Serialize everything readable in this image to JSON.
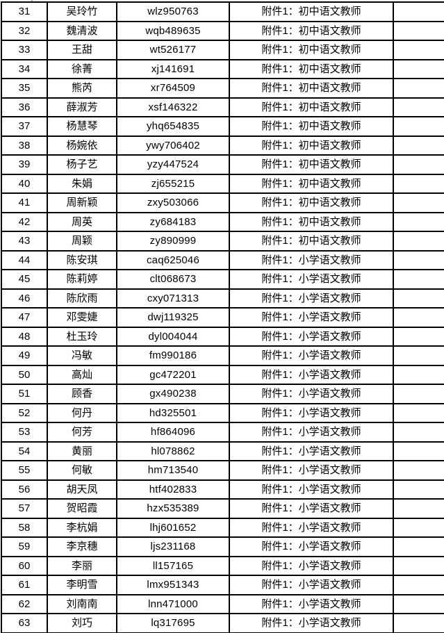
{
  "colors": {
    "grid": "#000000",
    "text": "#000000",
    "background": "#ffffff"
  },
  "table": {
    "rows": [
      {
        "no": "31",
        "name": "吴玲竹",
        "account": "wlz950763",
        "attachment": "附件1：初中语文教师",
        "note": ""
      },
      {
        "no": "32",
        "name": "魏清波",
        "account": "wqb489635",
        "attachment": "附件1：初中语文教师",
        "note": ""
      },
      {
        "no": "33",
        "name": "王甜",
        "account": "wt526177",
        "attachment": "附件1：初中语文教师",
        "note": ""
      },
      {
        "no": "34",
        "name": "徐菁",
        "account": "xj141691",
        "attachment": "附件1：初中语文教师",
        "note": ""
      },
      {
        "no": "35",
        "name": "熊芮",
        "account": "xr764509",
        "attachment": "附件1：初中语文教师",
        "note": ""
      },
      {
        "no": "36",
        "name": "薛淑芳",
        "account": "xsf146322",
        "attachment": "附件1：初中语文教师",
        "note": ""
      },
      {
        "no": "37",
        "name": "杨慧琴",
        "account": "yhq654835",
        "attachment": "附件1：初中语文教师",
        "note": ""
      },
      {
        "no": "38",
        "name": "杨婉依",
        "account": "ywy706402",
        "attachment": "附件1：初中语文教师",
        "note": ""
      },
      {
        "no": "39",
        "name": "杨子艺",
        "account": "yzy447524",
        "attachment": "附件1：初中语文教师",
        "note": ""
      },
      {
        "no": "40",
        "name": "朱娟",
        "account": "zj655215",
        "attachment": "附件1：初中语文教师",
        "note": ""
      },
      {
        "no": "41",
        "name": "周新颖",
        "account": "zxy503066",
        "attachment": "附件1：初中语文教师",
        "note": ""
      },
      {
        "no": "42",
        "name": "周英",
        "account": "zy684183",
        "attachment": "附件1：初中语文教师",
        "note": ""
      },
      {
        "no": "43",
        "name": "周颖",
        "account": "zy890999",
        "attachment": "附件1：初中语文教师",
        "note": ""
      },
      {
        "no": "44",
        "name": "陈安琪",
        "account": "caq625046",
        "attachment": "附件1：小学语文教师",
        "note": ""
      },
      {
        "no": "45",
        "name": "陈莉婷",
        "account": "clt068673",
        "attachment": "附件1：小学语文教师",
        "note": ""
      },
      {
        "no": "46",
        "name": "陈欣雨",
        "account": "cxy071313",
        "attachment": "附件1：小学语文教师",
        "note": ""
      },
      {
        "no": "47",
        "name": "邓雯婕",
        "account": "dwj119325",
        "attachment": "附件1：小学语文教师",
        "note": ""
      },
      {
        "no": "48",
        "name": "杜玉玲",
        "account": "dyl004044",
        "attachment": "附件1：小学语文教师",
        "note": ""
      },
      {
        "no": "49",
        "name": "冯敏",
        "account": "fm990186",
        "attachment": "附件1：小学语文教师",
        "note": ""
      },
      {
        "no": "50",
        "name": "高灿",
        "account": "gc472201",
        "attachment": "附件1：小学语文教师",
        "note": ""
      },
      {
        "no": "51",
        "name": "顾香",
        "account": "gx490238",
        "attachment": "附件1：小学语文教师",
        "note": ""
      },
      {
        "no": "52",
        "name": "何丹",
        "account": "hd325501",
        "attachment": "附件1：小学语文教师",
        "note": ""
      },
      {
        "no": "53",
        "name": "何芳",
        "account": "hf864096",
        "attachment": "附件1：小学语文教师",
        "note": ""
      },
      {
        "no": "54",
        "name": "黄丽",
        "account": "hl078862",
        "attachment": "附件1：小学语文教师",
        "note": ""
      },
      {
        "no": "55",
        "name": "何敏",
        "account": "hm713540",
        "attachment": "附件1：小学语文教师",
        "note": ""
      },
      {
        "no": "56",
        "name": "胡天凤",
        "account": "htf402833",
        "attachment": "附件1：小学语文教师",
        "note": ""
      },
      {
        "no": "57",
        "name": "贺昭霞",
        "account": "hzx535389",
        "attachment": "附件1：小学语文教师",
        "note": ""
      },
      {
        "no": "58",
        "name": "李杭娟",
        "account": "lhj601652",
        "attachment": "附件1：小学语文教师",
        "note": ""
      },
      {
        "no": "59",
        "name": "李京穗",
        "account": "ljs231168",
        "attachment": "附件1：小学语文教师",
        "note": ""
      },
      {
        "no": "60",
        "name": "李丽",
        "account": "ll157165",
        "attachment": "附件1：小学语文教师",
        "note": ""
      },
      {
        "no": "61",
        "name": "李明雪",
        "account": "lmx951343",
        "attachment": "附件1：小学语文教师",
        "note": ""
      },
      {
        "no": "62",
        "name": "刘南南",
        "account": "lnn471000",
        "attachment": "附件1：小学语文教师",
        "note": ""
      },
      {
        "no": "63",
        "name": "刘巧",
        "account": "lq317695",
        "attachment": "附件1：小学语文教师",
        "note": ""
      }
    ]
  }
}
